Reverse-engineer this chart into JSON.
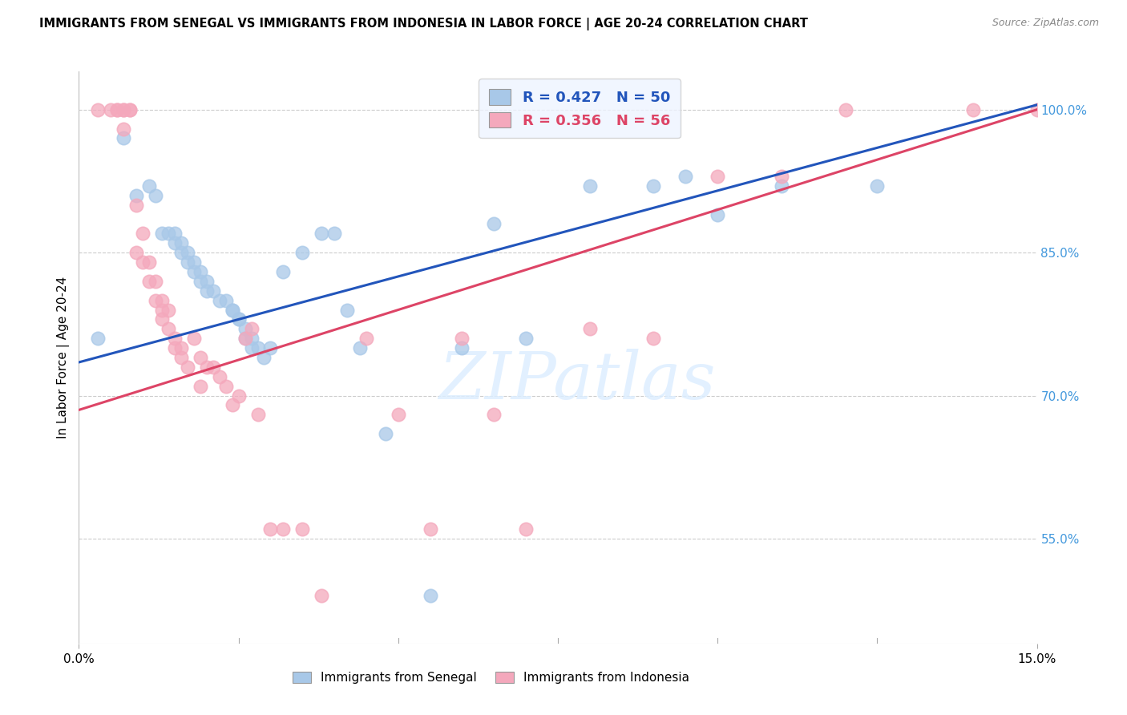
{
  "title": "IMMIGRANTS FROM SENEGAL VS IMMIGRANTS FROM INDONESIA IN LABOR FORCE | AGE 20-24 CORRELATION CHART",
  "source": "Source: ZipAtlas.com",
  "ylabel": "In Labor Force | Age 20-24",
  "xlim": [
    0.0,
    0.15
  ],
  "ylim": [
    0.44,
    1.04
  ],
  "ytick_vals": [
    0.55,
    0.7,
    0.85,
    1.0
  ],
  "ytick_labels": [
    "55.0%",
    "70.0%",
    "85.0%",
    "100.0%"
  ],
  "xtick_vals": [
    0.0,
    0.15
  ],
  "xtick_labels": [
    "0.0%",
    "15.0%"
  ],
  "senegal_R": 0.427,
  "senegal_N": 50,
  "indonesia_R": 0.356,
  "indonesia_N": 56,
  "senegal_color": "#a8c8e8",
  "indonesia_color": "#f4a8bc",
  "senegal_line_color": "#2255bb",
  "indonesia_line_color": "#dd4466",
  "senegal_x": [
    0.003,
    0.007,
    0.009,
    0.011,
    0.012,
    0.013,
    0.014,
    0.015,
    0.015,
    0.016,
    0.016,
    0.017,
    0.017,
    0.018,
    0.018,
    0.019,
    0.019,
    0.02,
    0.02,
    0.021,
    0.022,
    0.023,
    0.024,
    0.024,
    0.025,
    0.025,
    0.026,
    0.026,
    0.027,
    0.027,
    0.028,
    0.029,
    0.03,
    0.032,
    0.035,
    0.038,
    0.04,
    0.042,
    0.044,
    0.048,
    0.055,
    0.06,
    0.065,
    0.07,
    0.08,
    0.09,
    0.095,
    0.1,
    0.11,
    0.125
  ],
  "senegal_y": [
    0.76,
    0.97,
    0.91,
    0.92,
    0.91,
    0.87,
    0.87,
    0.87,
    0.86,
    0.86,
    0.85,
    0.85,
    0.84,
    0.84,
    0.83,
    0.83,
    0.82,
    0.82,
    0.81,
    0.81,
    0.8,
    0.8,
    0.79,
    0.79,
    0.78,
    0.78,
    0.77,
    0.76,
    0.76,
    0.75,
    0.75,
    0.74,
    0.75,
    0.83,
    0.85,
    0.87,
    0.87,
    0.79,
    0.75,
    0.66,
    0.49,
    0.75,
    0.88,
    0.76,
    0.92,
    0.92,
    0.93,
    0.89,
    0.92,
    0.92
  ],
  "indonesia_x": [
    0.003,
    0.005,
    0.006,
    0.006,
    0.007,
    0.007,
    0.007,
    0.008,
    0.008,
    0.009,
    0.009,
    0.01,
    0.01,
    0.011,
    0.011,
    0.012,
    0.012,
    0.013,
    0.013,
    0.013,
    0.014,
    0.014,
    0.015,
    0.015,
    0.016,
    0.016,
    0.017,
    0.018,
    0.019,
    0.019,
    0.02,
    0.021,
    0.022,
    0.023,
    0.024,
    0.025,
    0.026,
    0.027,
    0.028,
    0.03,
    0.032,
    0.035,
    0.038,
    0.045,
    0.05,
    0.055,
    0.06,
    0.065,
    0.07,
    0.08,
    0.09,
    0.1,
    0.11,
    0.12,
    0.14,
    0.15
  ],
  "indonesia_y": [
    1.0,
    1.0,
    1.0,
    1.0,
    1.0,
    1.0,
    0.98,
    1.0,
    1.0,
    0.9,
    0.85,
    0.87,
    0.84,
    0.84,
    0.82,
    0.82,
    0.8,
    0.8,
    0.79,
    0.78,
    0.79,
    0.77,
    0.76,
    0.75,
    0.75,
    0.74,
    0.73,
    0.76,
    0.74,
    0.71,
    0.73,
    0.73,
    0.72,
    0.71,
    0.69,
    0.7,
    0.76,
    0.77,
    0.68,
    0.56,
    0.56,
    0.56,
    0.49,
    0.76,
    0.68,
    0.56,
    0.76,
    0.68,
    0.56,
    0.77,
    0.76,
    0.93,
    0.93,
    1.0,
    1.0,
    1.0
  ]
}
